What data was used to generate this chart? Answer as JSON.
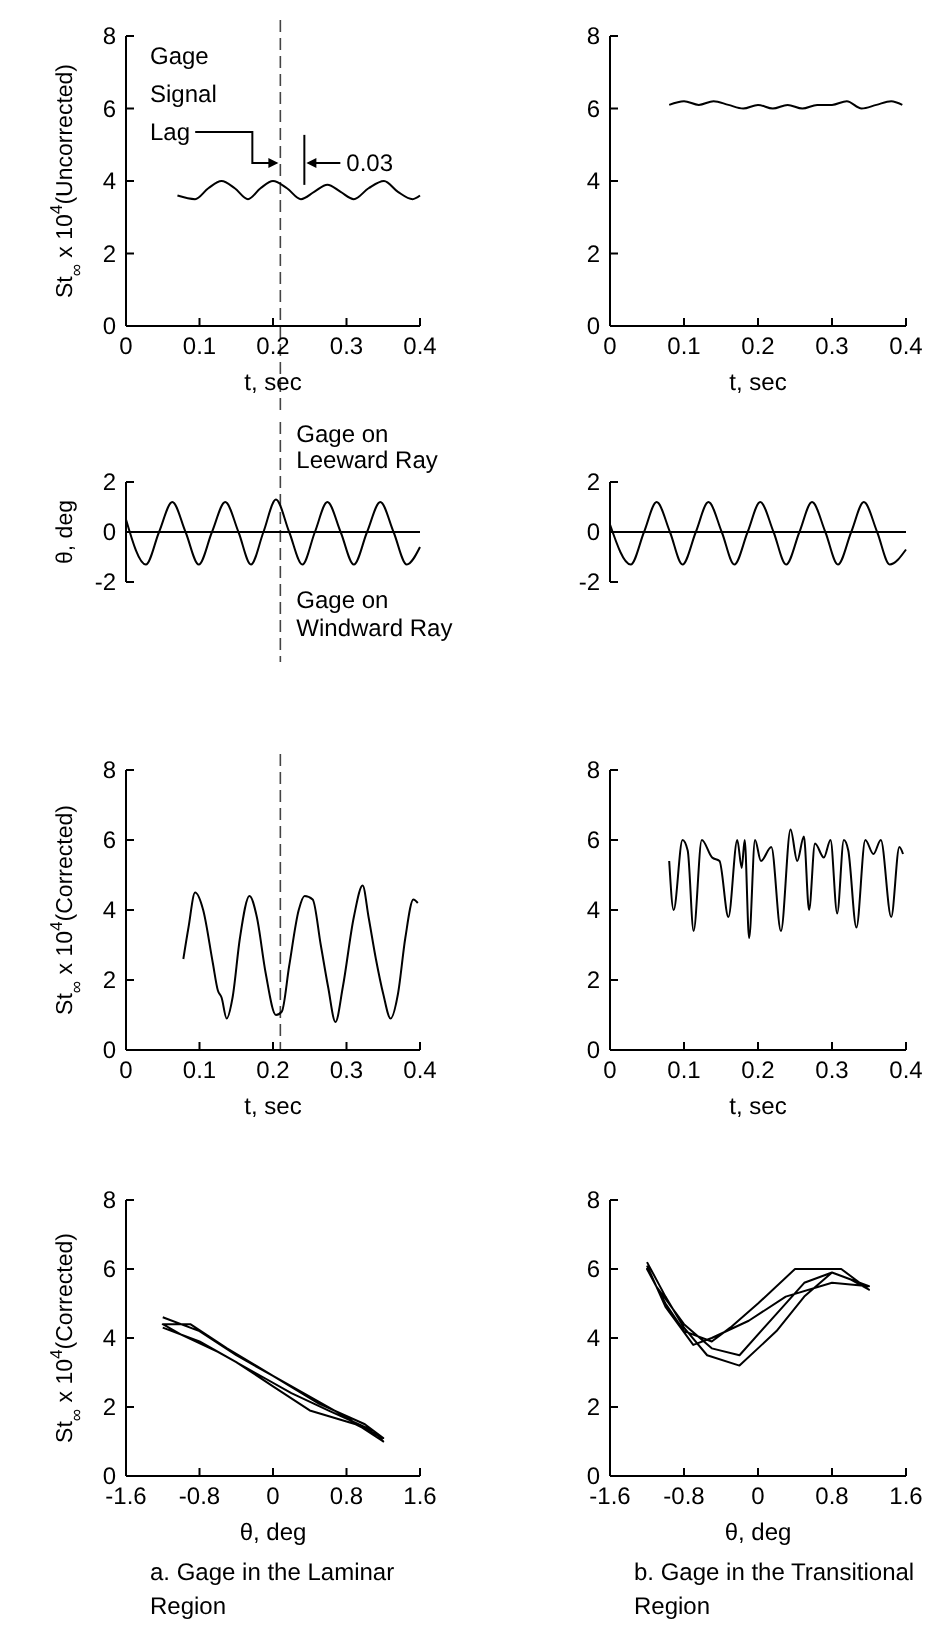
{
  "chart_data": [
    {
      "type": "line",
      "xlabel": "t, sec",
      "ylabel": "St$_{∞}$ x 10$^{4}$(Uncorrected)",
      "xlim": [
        0,
        0.4
      ],
      "xticks": [
        0,
        0.1,
        0.2,
        0.3,
        0.4
      ],
      "ylim": [
        0,
        8
      ],
      "yticks": [
        0,
        2,
        4,
        6,
        8
      ],
      "ref_lines": [
        {
          "axis": "x",
          "value": 0.21,
          "line_style": "dashed"
        }
      ],
      "annotations": [
        {
          "text": "Gage Signal Lag",
          "x": 0.21,
          "y": 4.5
        },
        "0.03"
      ],
      "series": [
        {
          "color": "#000000",
          "x": [
            0.07,
            0.094,
            0.112,
            0.13,
            0.148,
            0.166,
            0.183,
            0.2,
            0.219,
            0.238,
            0.256,
            0.274,
            0.292,
            0.31,
            0.33,
            0.351,
            0.37,
            0.39,
            0.4
          ],
          "values": [
            3.6,
            3.5,
            3.8,
            4.0,
            3.8,
            3.5,
            3.8,
            4.0,
            3.8,
            3.5,
            3.7,
            3.9,
            3.7,
            3.5,
            3.8,
            4.0,
            3.7,
            3.5,
            3.6
          ]
        }
      ]
    },
    {
      "type": "line",
      "xlabel": "t, sec",
      "xlim": [
        0,
        0.4
      ],
      "xticks": [
        0,
        0.1,
        0.2,
        0.3,
        0.4
      ],
      "ylim": [
        0,
        8
      ],
      "yticks": [
        0,
        2,
        4,
        6,
        8
      ],
      "series": [
        {
          "color": "#000000",
          "x": [
            0.08,
            0.1,
            0.12,
            0.14,
            0.16,
            0.18,
            0.2,
            0.22,
            0.24,
            0.26,
            0.28,
            0.3,
            0.32,
            0.34,
            0.36,
            0.38,
            0.395
          ],
          "values": [
            6.1,
            6.2,
            6.1,
            6.2,
            6.1,
            6.0,
            6.1,
            6.0,
            6.1,
            6.0,
            6.1,
            6.1,
            6.2,
            6.0,
            6.1,
            6.2,
            6.1
          ]
        }
      ]
    },
    {
      "type": "line",
      "ylabel": "θ, deg",
      "xlim": [
        0,
        0.4
      ],
      "ylim": [
        -2,
        2
      ],
      "yticks": [
        -2,
        0,
        2
      ],
      "tick_labels": "y",
      "ref_lines": [
        {
          "axis": "x",
          "value": 0.21,
          "line_style": "dashed"
        }
      ],
      "annotations": [
        "Gage on Leeward Ray",
        "Gage on Windward Ray"
      ],
      "series": [
        {
          "color": "#000000",
          "x": [
            0,
            0.027,
            0.045,
            0.063,
            0.081,
            0.099,
            0.117,
            0.135,
            0.153,
            0.17,
            0.187,
            0.204,
            0.222,
            0.24,
            0.257,
            0.274,
            0.292,
            0.31,
            0.328,
            0.346,
            0.364,
            0.382,
            0.4
          ],
          "values": [
            0.5,
            -1.3,
            0,
            1.2,
            0,
            -1.3,
            0,
            1.2,
            0,
            -1.3,
            0,
            1.3,
            0,
            -1.3,
            0,
            1.2,
            0,
            -1.3,
            0,
            1.2,
            0,
            -1.3,
            -0.6
          ]
        }
      ]
    },
    {
      "type": "line",
      "xlim": [
        0,
        0.4
      ],
      "ylim": [
        -2,
        2
      ],
      "yticks": [
        -2,
        0,
        2
      ],
      "tick_labels": "y",
      "series": [
        {
          "color": "#000000",
          "x": [
            0,
            0.028,
            0.046,
            0.063,
            0.081,
            0.098,
            0.116,
            0.133,
            0.151,
            0.168,
            0.186,
            0.203,
            0.221,
            0.238,
            0.256,
            0.273,
            0.291,
            0.308,
            0.326,
            0.343,
            0.361,
            0.378,
            0.4
          ],
          "values": [
            0.3,
            -1.3,
            0,
            1.2,
            0,
            -1.3,
            0,
            1.2,
            0,
            -1.3,
            0,
            1.2,
            0,
            -1.3,
            0,
            1.2,
            0,
            -1.3,
            0,
            1.2,
            0,
            -1.3,
            -0.7
          ]
        }
      ]
    },
    {
      "type": "line",
      "xlabel": "t, sec",
      "ylabel": "St$_{∞}$ x 10$^{4}$(Corrected)",
      "xlim": [
        0,
        0.4
      ],
      "xticks": [
        0,
        0.1,
        0.2,
        0.3,
        0.4
      ],
      "ylim": [
        0,
        8
      ],
      "yticks": [
        0,
        2,
        4,
        6,
        8
      ],
      "ref_lines": [
        {
          "axis": "x",
          "value": 0.21,
          "line_style": "dashed"
        }
      ],
      "series": [
        {
          "color": "#000000",
          "x": [
            0.078,
            0.085,
            0.094,
            0.105,
            0.118,
            0.125,
            0.13,
            0.137,
            0.145,
            0.155,
            0.168,
            0.178,
            0.19,
            0.204,
            0.212,
            0.222,
            0.235,
            0.243,
            0.254,
            0.265,
            0.275,
            0.285,
            0.295,
            0.31,
            0.322,
            0.33,
            0.34,
            0.35,
            0.36,
            0.37,
            0.38,
            0.391,
            0.397
          ],
          "values": [
            2.6,
            3.5,
            4.5,
            4.0,
            2.5,
            1.7,
            1.5,
            0.9,
            1.5,
            3.2,
            4.4,
            3.8,
            2.2,
            1.0,
            1.1,
            2.4,
            4.0,
            4.4,
            4.3,
            3.0,
            1.8,
            0.8,
            1.8,
            3.8,
            4.7,
            3.8,
            2.6,
            1.6,
            0.9,
            1.6,
            3.2,
            4.3,
            4.2
          ]
        }
      ]
    },
    {
      "type": "line",
      "xlabel": "t, sec",
      "xlim": [
        0,
        0.4
      ],
      "xticks": [
        0,
        0.1,
        0.2,
        0.3,
        0.4
      ],
      "ylim": [
        0,
        8
      ],
      "yticks": [
        0,
        2,
        4,
        6,
        8
      ],
      "series": [
        {
          "color": "#000000",
          "x": [
            0.08,
            0.086,
            0.098,
            0.105,
            0.113,
            0.124,
            0.138,
            0.148,
            0.16,
            0.172,
            0.178,
            0.182,
            0.188,
            0.196,
            0.204,
            0.218,
            0.231,
            0.244,
            0.253,
            0.262,
            0.269,
            0.277,
            0.289,
            0.298,
            0.307,
            0.316,
            0.322,
            0.333,
            0.345,
            0.356,
            0.366,
            0.38,
            0.391,
            0.396
          ],
          "values": [
            5.4,
            4.0,
            6.0,
            5.7,
            3.4,
            6.0,
            5.5,
            5.4,
            3.8,
            6.0,
            5.2,
            6.0,
            3.2,
            6.0,
            5.4,
            5.8,
            3.4,
            6.3,
            5.4,
            6.1,
            4.0,
            5.9,
            5.5,
            6.0,
            3.9,
            6.0,
            5.7,
            3.5,
            6.0,
            5.6,
            6.0,
            3.8,
            5.8,
            5.6
          ]
        }
      ]
    },
    {
      "type": "line",
      "xlabel": "θ, deg",
      "ylabel": "St$_{∞}$ x 10$^{4}$(Corrected)",
      "xlim": [
        -1.6,
        1.6
      ],
      "xticks": [
        -1.6,
        -0.8,
        0,
        0.8,
        1.6
      ],
      "ylim": [
        0,
        8
      ],
      "yticks": [
        0,
        2,
        4,
        6,
        8
      ],
      "annotations": [
        "a. Gage in the Laminar Region"
      ],
      "series": [
        {
          "color": "#000000",
          "x": [
            -1.2,
            -0.8,
            -0.4,
            0,
            0.4,
            0.8,
            1.2,
            1.1,
            0.6,
            0.2,
            -0.2,
            -0.6,
            -1.0,
            -1.2,
            -0.9,
            -0.5,
            0,
            0.5,
            1.0,
            1.2,
            0.9,
            0.4,
            0,
            -0.4,
            -0.8,
            -1.2
          ],
          "values": [
            4.6,
            4.2,
            3.5,
            2.9,
            2.3,
            1.7,
            1.0,
            1.3,
            1.9,
            2.4,
            3.0,
            3.6,
            4.1,
            4.4,
            4.4,
            3.7,
            2.9,
            2.1,
            1.5,
            1.1,
            1.5,
            1.9,
            2.6,
            3.3,
            3.9,
            4.3
          ]
        }
      ]
    },
    {
      "type": "line",
      "xlabel": "θ, deg",
      "xlim": [
        -1.6,
        1.6
      ],
      "xticks": [
        -1.6,
        -0.8,
        0,
        0.8,
        1.6
      ],
      "ylim": [
        0,
        8
      ],
      "yticks": [
        0,
        2,
        4,
        6,
        8
      ],
      "annotations": [
        "b. Gage in the Transitional Region"
      ],
      "series": [
        {
          "color": "#000000",
          "x": [
            -1.2,
            -1.0,
            -0.8,
            -0.55,
            -0.2,
            0.2,
            0.5,
            0.8,
            1.0,
            1.2,
            0.9,
            0.4,
            0,
            -0.3,
            -0.5,
            -0.8,
            -1.0,
            -1.2,
            -1.1,
            -0.8,
            -0.5,
            -0.2,
            0.2,
            0.5,
            0.8,
            1.2,
            0.8,
            0.3,
            -0.1,
            -0.5,
            -0.7,
            -1.0,
            -1.2
          ],
          "values": [
            6.2,
            5.2,
            4.3,
            3.5,
            3.2,
            4.2,
            5.2,
            5.9,
            5.7,
            5.4,
            6.0,
            6.0,
            5.0,
            4.3,
            3.9,
            4.2,
            5.0,
            6.0,
            5.5,
            4.4,
            3.7,
            3.5,
            4.7,
            5.6,
            5.9,
            5.5,
            5.6,
            5.2,
            4.5,
            4.0,
            3.8,
            4.9,
            6.1
          ]
        }
      ]
    }
  ]
}
